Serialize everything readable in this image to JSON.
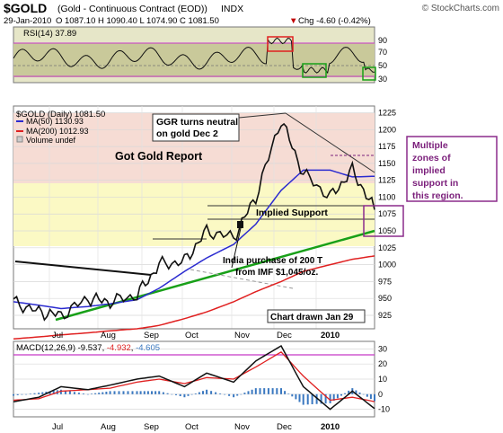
{
  "header": {
    "symbol": "$GOLD",
    "description": "(Gold - Continuous Contract (EOD))",
    "exchange": "INDX",
    "watermark": "© StockCharts.com",
    "date": "29-Jan-2010",
    "ohlc": "O 1087.10  H 1090.40  L 1074.90  C 1081.50",
    "change": "Chg -4.60 (-0.42%)",
    "change_arrow": "▼"
  },
  "colors": {
    "price": "#000000",
    "ma50": "#2b2bd0",
    "ma200": "#e02020",
    "trend": "#18a018",
    "rsi_band": "#c9c99a",
    "macd_signal": "#e02020",
    "histogram": "#3a78c0",
    "highlight_box": "#8b2b8b",
    "annotation_text": "#7b1f7b"
  },
  "rsi_panel": {
    "label": "RSI(14) 37.89",
    "ticks": [
      "90",
      "70",
      "50",
      "30"
    ]
  },
  "price_panel": {
    "label": "$GOLD (Daily) 1081.50",
    "legend": [
      {
        "text": "MA(50) 1130.93",
        "color": "#2b2bd0"
      },
      {
        "text": "MA(200) 1012.93",
        "color": "#e02020"
      },
      {
        "text": "Volume undef",
        "color": "#888888"
      }
    ],
    "ticks": [
      "1225",
      "1200",
      "1175",
      "1150",
      "1125",
      "1100",
      "1075",
      "1050",
      "1025",
      "1000",
      "975",
      "950",
      "925"
    ]
  },
  "macd_panel": {
    "label": "MACD(12,26,9)",
    "value1": "-9.537",
    "value2": "-4.932",
    "value3": "-4.605",
    "ticks": [
      "30",
      "20",
      "10",
      "0",
      "-10"
    ]
  },
  "x_labels": [
    "Jul",
    "Aug",
    "Sep",
    "Oct",
    "Nov",
    "Dec",
    "2010"
  ],
  "annotations": {
    "title": "Got Gold Report",
    "ggr_line1": "GGR turns neutral",
    "ggr_line2": "on gold Dec 2",
    "implied_support": "Implied Support",
    "india_line1": "India purchase of 200 T",
    "india_line2": "from IMF $1,045/oz.",
    "chart_drawn": "Chart drawn Jan 29",
    "zones_line1": "Multiple",
    "zones_line2": "zones of",
    "zones_line3": "implied",
    "zones_line4": "support in",
    "zones_line5": "this region."
  },
  "chart_data": {
    "type": "line",
    "title": "$GOLD (Daily) 1081.50",
    "x": [
      "2009-06-15",
      "2009-07-01",
      "2009-07-15",
      "2009-08-01",
      "2009-08-15",
      "2009-09-01",
      "2009-09-15",
      "2009-10-01",
      "2009-10-15",
      "2009-11-01",
      "2009-11-15",
      "2009-12-01",
      "2009-12-15",
      "2010-01-01",
      "2010-01-15",
      "2010-01-29"
    ],
    "series": [
      {
        "name": "$GOLD",
        "values": [
          945,
          930,
          925,
          950,
          945,
          955,
          1000,
          1005,
          1050,
          1040,
          1100,
          1215,
          1135,
          1100,
          1140,
          1081.5
        ]
      },
      {
        "name": "MA(50)",
        "values": [
          945,
          940,
          935,
          938,
          942,
          948,
          965,
          990,
          1010,
          1030,
          1060,
          1110,
          1140,
          1140,
          1130,
          1130.9
        ]
      },
      {
        "name": "MA(200)",
        "values": [
          890,
          893,
          896,
          899,
          902,
          905,
          910,
          920,
          930,
          945,
          960,
          975,
          990,
          1000,
          1008,
          1012.9
        ]
      }
    ],
    "ylim": [
      905,
      1235
    ],
    "rsi": {
      "name": "RSI(14)",
      "last": 37.89,
      "ylim": [
        20,
        100
      ]
    },
    "macd": {
      "name": "MACD(12,26,9)",
      "macd": [
        -5,
        -2,
        5,
        3,
        6,
        10,
        12,
        5,
        14,
        8,
        22,
        32,
        5,
        -10,
        2,
        -9.537
      ],
      "signal": [
        -4,
        -3,
        2,
        3,
        4,
        8,
        10,
        7,
        11,
        10,
        18,
        28,
        12,
        -4,
        -2,
        -4.932
      ],
      "histogram": [
        -1,
        1,
        3,
        0,
        2,
        2,
        2,
        -2,
        3,
        -2,
        4,
        4,
        -7,
        -6,
        4,
        -4.605
      ],
      "ylim": [
        -15,
        35
      ]
    }
  }
}
